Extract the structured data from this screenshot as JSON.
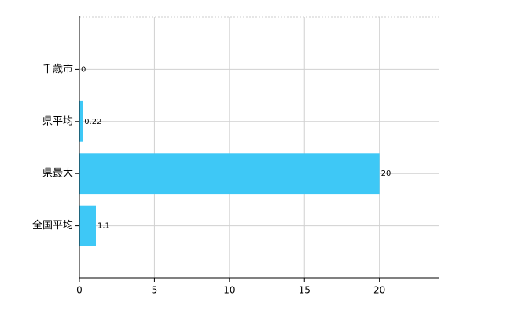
{
  "chart_data": {
    "type": "hbar",
    "categories": [
      "千歳市",
      "県平均",
      "県最大",
      "全国平均"
    ],
    "values": [
      0,
      0.22,
      20,
      1.1
    ],
    "color": "#3ec8f6",
    "xlim": [
      0,
      24
    ],
    "xticks": [
      0,
      5,
      10,
      15,
      20
    ],
    "grid": true
  }
}
